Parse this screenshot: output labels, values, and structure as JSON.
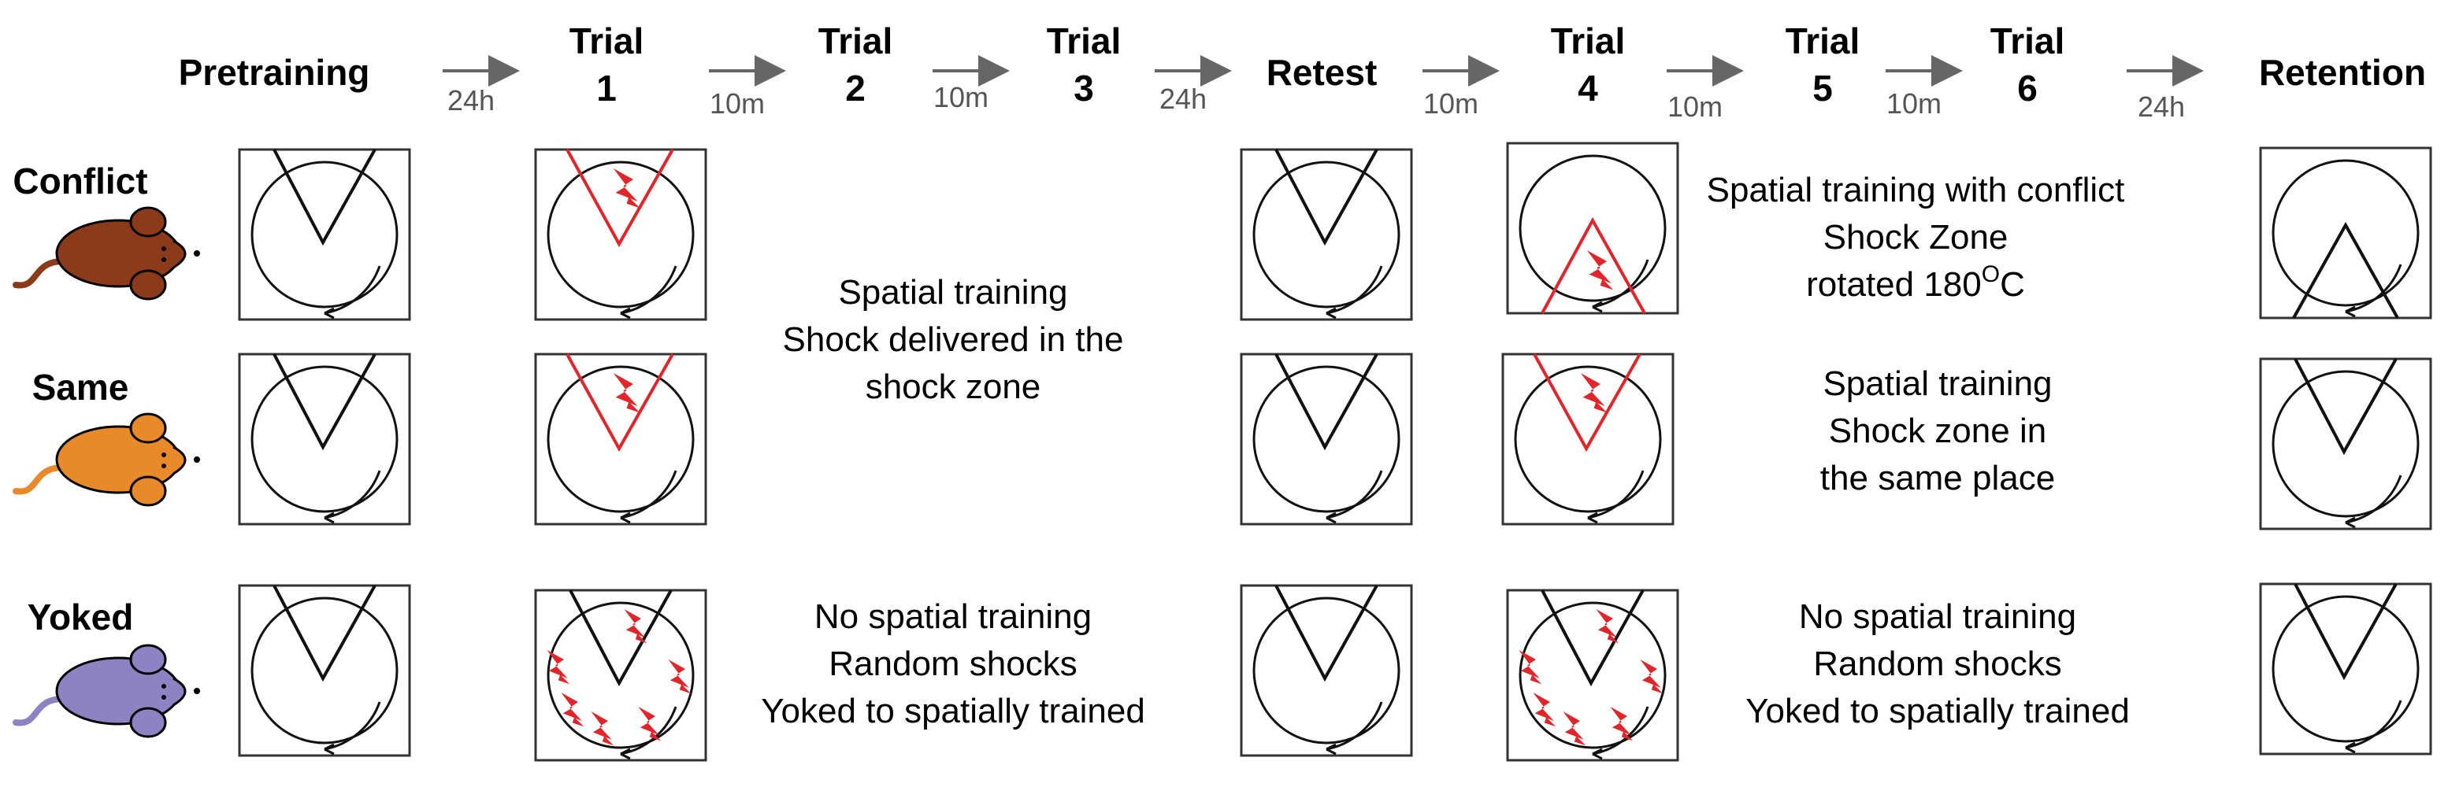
{
  "stages": [
    {
      "id": "pretraining",
      "line1": "Pretraining",
      "line2": ""
    },
    {
      "id": "trial1",
      "line1": "Trial",
      "line2": "1"
    },
    {
      "id": "trial2",
      "line1": "Trial",
      "line2": "2"
    },
    {
      "id": "trial3",
      "line1": "Trial",
      "line2": "3"
    },
    {
      "id": "retest",
      "line1": "Retest",
      "line2": ""
    },
    {
      "id": "trial4",
      "line1": "Trial",
      "line2": "4"
    },
    {
      "id": "trial5",
      "line1": "Trial",
      "line2": "5"
    },
    {
      "id": "trial6",
      "line1": "Trial",
      "line2": "6"
    },
    {
      "id": "retention",
      "line1": "Retention",
      "line2": ""
    }
  ],
  "intervals": [
    "24h",
    "10m",
    "10m",
    "24h",
    "10m",
    "10m",
    "10m",
    "24h"
  ],
  "groups": [
    {
      "name": "Conflict",
      "mouse_color": "#8B3A1A",
      "phase1_text": [
        "Spatial training",
        "Shock delivered in the",
        "shock zone"
      ],
      "phase2_text": [
        "Spatial training with conflict",
        "Shock Zone",
        "rotated 180",
        "O",
        "C"
      ],
      "arenas": [
        "plain",
        "red-zone",
        "plain",
        "red-zone-rotated",
        "plain-rotated"
      ]
    },
    {
      "name": "Same",
      "mouse_color": "#E8892A",
      "phase2_text": [
        "Spatial training",
        "Shock zone in",
        "the same place"
      ],
      "arenas": [
        "plain",
        "red-zone",
        "plain",
        "red-zone",
        "plain"
      ]
    },
    {
      "name": "Yoked",
      "mouse_color": "#8E83C2",
      "phase1_text": [
        "No spatial training",
        "Random shocks",
        "Yoked to spatially trained"
      ],
      "phase2_text": [
        "No spatial training",
        "Random shocks",
        "Yoked to spatially trained"
      ],
      "arenas": [
        "plain",
        "random-shocks",
        "plain",
        "random-shocks",
        "plain"
      ]
    }
  ],
  "colors": {
    "shock_red": "#E0262B",
    "arrow_gray": "#666666"
  }
}
